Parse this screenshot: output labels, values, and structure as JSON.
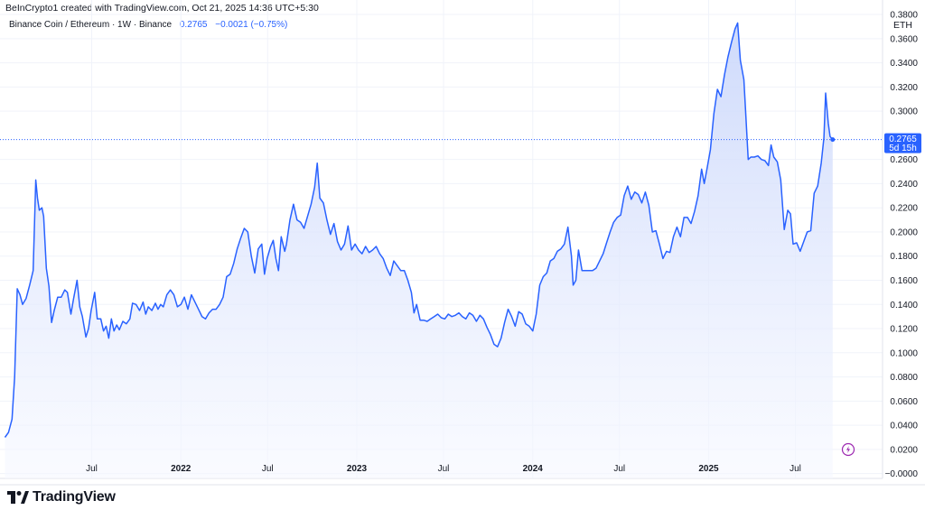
{
  "header": {
    "attribution": "BeInCrypto1 created with TradingView.com, Oct 21, 2025 14:36 UTC+5:30"
  },
  "legend": {
    "symbol": "Binance Coin / Ethereum · 1W · Binance",
    "last": "0.2765",
    "change": "−0.0021 (−0.75%)"
  },
  "currency": "ETH",
  "price_label": {
    "value": "0.2765",
    "countdown": "5d 15h"
  },
  "colors": {
    "line": "#2962ff",
    "area_top": "#c9d6fb",
    "area_bottom": "#f6f8ff",
    "grid": "#f0f3fa",
    "axis_text": "#131722",
    "flash_icon": "#9c27b0"
  },
  "brand": {
    "name": "TradingView"
  },
  "chart_data": {
    "type": "area",
    "title": "Binance Coin / Ethereum · 1W · Binance",
    "xlabel": "",
    "ylabel": "ETH",
    "ylim": [
      -0.004,
      0.392
    ],
    "grid": true,
    "x_ticks": [
      {
        "label": "Jul",
        "x": 2021.493
      },
      {
        "label": "2022",
        "x": 2022.0
      },
      {
        "label": "Jul",
        "x": 2022.493
      },
      {
        "label": "2023",
        "x": 2023.0
      },
      {
        "label": "Jul",
        "x": 2023.493
      },
      {
        "label": "2024",
        "x": 2024.0
      },
      {
        "label": "Jul",
        "x": 2024.493
      },
      {
        "label": "2025",
        "x": 2025.0
      },
      {
        "label": "Jul",
        "x": 2025.493
      }
    ],
    "y_ticks": [
      {
        "label": "−0.0000",
        "v": 0
      },
      {
        "label": "0.0200",
        "v": 0.02
      },
      {
        "label": "0.0400",
        "v": 0.04
      },
      {
        "label": "0.0600",
        "v": 0.06
      },
      {
        "label": "0.0800",
        "v": 0.08
      },
      {
        "label": "0.1000",
        "v": 0.1
      },
      {
        "label": "0.1200",
        "v": 0.12
      },
      {
        "label": "0.1400",
        "v": 0.14
      },
      {
        "label": "0.1600",
        "v": 0.16
      },
      {
        "label": "0.1800",
        "v": 0.18
      },
      {
        "label": "0.2000",
        "v": 0.2
      },
      {
        "label": "0.2200",
        "v": 0.22
      },
      {
        "label": "0.2400",
        "v": 0.24
      },
      {
        "label": "0.2600",
        "v": 0.26
      },
      {
        "label": "0.3000",
        "v": 0.3
      },
      {
        "label": "0.3200",
        "v": 0.32
      },
      {
        "label": "0.3400",
        "v": 0.34
      },
      {
        "label": "0.3600",
        "v": 0.36
      },
      {
        "label": "0.3800",
        "v": 0.38
      }
    ],
    "last_value": 0.2765,
    "series": [
      {
        "points": [
          [
            2021.0,
            0.03
          ],
          [
            2021.02,
            0.034
          ],
          [
            2021.04,
            0.045
          ],
          [
            2021.055,
            0.08
          ],
          [
            2021.07,
            0.153
          ],
          [
            2021.085,
            0.148
          ],
          [
            2021.1,
            0.14
          ],
          [
            2021.12,
            0.145
          ],
          [
            2021.14,
            0.156
          ],
          [
            2021.16,
            0.168
          ],
          [
            2021.175,
            0.243
          ],
          [
            2021.185,
            0.228
          ],
          [
            2021.195,
            0.218
          ],
          [
            2021.21,
            0.22
          ],
          [
            2021.22,
            0.213
          ],
          [
            2021.235,
            0.17
          ],
          [
            2021.25,
            0.155
          ],
          [
            2021.265,
            0.125
          ],
          [
            2021.28,
            0.135
          ],
          [
            2021.3,
            0.146
          ],
          [
            2021.32,
            0.146
          ],
          [
            2021.34,
            0.152
          ],
          [
            2021.355,
            0.15
          ],
          [
            2021.375,
            0.132
          ],
          [
            2021.39,
            0.145
          ],
          [
            2021.41,
            0.16
          ],
          [
            2021.425,
            0.138
          ],
          [
            2021.44,
            0.13
          ],
          [
            2021.46,
            0.113
          ],
          [
            2021.475,
            0.12
          ],
          [
            2021.49,
            0.135
          ],
          [
            2021.51,
            0.15
          ],
          [
            2021.525,
            0.128
          ],
          [
            2021.545,
            0.128
          ],
          [
            2021.56,
            0.118
          ],
          [
            2021.575,
            0.122
          ],
          [
            2021.59,
            0.112
          ],
          [
            2021.605,
            0.128
          ],
          [
            2021.62,
            0.118
          ],
          [
            2021.635,
            0.123
          ],
          [
            2021.65,
            0.119
          ],
          [
            2021.67,
            0.126
          ],
          [
            2021.69,
            0.124
          ],
          [
            2021.71,
            0.128
          ],
          [
            2021.725,
            0.141
          ],
          [
            2021.745,
            0.14
          ],
          [
            2021.765,
            0.135
          ],
          [
            2021.785,
            0.142
          ],
          [
            2021.8,
            0.132
          ],
          [
            2021.815,
            0.138
          ],
          [
            2021.835,
            0.135
          ],
          [
            2021.855,
            0.141
          ],
          [
            2021.87,
            0.136
          ],
          [
            2021.885,
            0.14
          ],
          [
            2021.9,
            0.138
          ],
          [
            2021.92,
            0.148
          ],
          [
            2021.94,
            0.152
          ],
          [
            2021.96,
            0.148
          ],
          [
            2021.98,
            0.138
          ],
          [
            2022.0,
            0.14
          ],
          [
            2022.02,
            0.146
          ],
          [
            2022.04,
            0.136
          ],
          [
            2022.06,
            0.148
          ],
          [
            2022.08,
            0.142
          ],
          [
            2022.1,
            0.136
          ],
          [
            2022.12,
            0.13
          ],
          [
            2022.14,
            0.128
          ],
          [
            2022.16,
            0.133
          ],
          [
            2022.18,
            0.136
          ],
          [
            2022.2,
            0.136
          ],
          [
            2022.22,
            0.14
          ],
          [
            2022.24,
            0.146
          ],
          [
            2022.26,
            0.163
          ],
          [
            2022.28,
            0.165
          ],
          [
            2022.3,
            0.174
          ],
          [
            2022.32,
            0.186
          ],
          [
            2022.34,
            0.195
          ],
          [
            2022.36,
            0.203
          ],
          [
            2022.38,
            0.2
          ],
          [
            2022.4,
            0.18
          ],
          [
            2022.42,
            0.166
          ],
          [
            2022.44,
            0.186
          ],
          [
            2022.46,
            0.19
          ],
          [
            2022.475,
            0.165
          ],
          [
            2022.49,
            0.178
          ],
          [
            2022.51,
            0.188
          ],
          [
            2022.525,
            0.193
          ],
          [
            2022.54,
            0.178
          ],
          [
            2022.555,
            0.168
          ],
          [
            2022.57,
            0.196
          ],
          [
            2022.59,
            0.184
          ],
          [
            2022.6,
            0.19
          ],
          [
            2022.62,
            0.21
          ],
          [
            2022.64,
            0.223
          ],
          [
            2022.66,
            0.21
          ],
          [
            2022.68,
            0.208
          ],
          [
            2022.7,
            0.203
          ],
          [
            2022.72,
            0.213
          ],
          [
            2022.74,
            0.223
          ],
          [
            2022.76,
            0.237
          ],
          [
            2022.775,
            0.257
          ],
          [
            2022.79,
            0.228
          ],
          [
            2022.81,
            0.224
          ],
          [
            2022.83,
            0.21
          ],
          [
            2022.85,
            0.198
          ],
          [
            2022.87,
            0.207
          ],
          [
            2022.89,
            0.192
          ],
          [
            2022.91,
            0.185
          ],
          [
            2022.93,
            0.19
          ],
          [
            2022.95,
            0.205
          ],
          [
            2022.97,
            0.185
          ],
          [
            2022.99,
            0.19
          ],
          [
            2023.01,
            0.185
          ],
          [
            2023.03,
            0.182
          ],
          [
            2023.05,
            0.188
          ],
          [
            2023.07,
            0.183
          ],
          [
            2023.09,
            0.185
          ],
          [
            2023.11,
            0.188
          ],
          [
            2023.13,
            0.182
          ],
          [
            2023.15,
            0.178
          ],
          [
            2023.17,
            0.17
          ],
          [
            2023.19,
            0.164
          ],
          [
            2023.21,
            0.176
          ],
          [
            2023.23,
            0.172
          ],
          [
            2023.25,
            0.168
          ],
          [
            2023.27,
            0.168
          ],
          [
            2023.29,
            0.16
          ],
          [
            2023.31,
            0.15
          ],
          [
            2023.325,
            0.133
          ],
          [
            2023.34,
            0.14
          ],
          [
            2023.36,
            0.127
          ],
          [
            2023.38,
            0.127
          ],
          [
            2023.4,
            0.126
          ],
          [
            2023.42,
            0.128
          ],
          [
            2023.44,
            0.13
          ],
          [
            2023.46,
            0.132
          ],
          [
            2023.48,
            0.129
          ],
          [
            2023.5,
            0.128
          ],
          [
            2023.52,
            0.132
          ],
          [
            2023.54,
            0.13
          ],
          [
            2023.56,
            0.131
          ],
          [
            2023.58,
            0.133
          ],
          [
            2023.6,
            0.13
          ],
          [
            2023.62,
            0.128
          ],
          [
            2023.64,
            0.133
          ],
          [
            2023.66,
            0.131
          ],
          [
            2023.68,
            0.126
          ],
          [
            2023.7,
            0.131
          ],
          [
            2023.72,
            0.128
          ],
          [
            2023.74,
            0.121
          ],
          [
            2023.76,
            0.115
          ],
          [
            2023.78,
            0.107
          ],
          [
            2023.8,
            0.105
          ],
          [
            2023.82,
            0.112
          ],
          [
            2023.84,
            0.125
          ],
          [
            2023.86,
            0.136
          ],
          [
            2023.88,
            0.13
          ],
          [
            2023.9,
            0.122
          ],
          [
            2023.92,
            0.134
          ],
          [
            2023.94,
            0.132
          ],
          [
            2023.96,
            0.124
          ],
          [
            2023.98,
            0.122
          ],
          [
            2024.0,
            0.118
          ],
          [
            2024.02,
            0.132
          ],
          [
            2024.04,
            0.156
          ],
          [
            2024.06,
            0.163
          ],
          [
            2024.08,
            0.166
          ],
          [
            2024.1,
            0.176
          ],
          [
            2024.12,
            0.178
          ],
          [
            2024.14,
            0.184
          ],
          [
            2024.16,
            0.186
          ],
          [
            2024.18,
            0.19
          ],
          [
            2024.2,
            0.204
          ],
          [
            2024.22,
            0.18
          ],
          [
            2024.23,
            0.156
          ],
          [
            2024.245,
            0.16
          ],
          [
            2024.26,
            0.185
          ],
          [
            2024.28,
            0.168
          ],
          [
            2024.3,
            0.168
          ],
          [
            2024.32,
            0.168
          ],
          [
            2024.34,
            0.168
          ],
          [
            2024.36,
            0.17
          ],
          [
            2024.38,
            0.176
          ],
          [
            2024.4,
            0.182
          ],
          [
            2024.42,
            0.191
          ],
          [
            2024.44,
            0.2
          ],
          [
            2024.46,
            0.208
          ],
          [
            2024.48,
            0.212
          ],
          [
            2024.5,
            0.214
          ],
          [
            2024.52,
            0.23
          ],
          [
            2024.54,
            0.238
          ],
          [
            2024.56,
            0.227
          ],
          [
            2024.58,
            0.233
          ],
          [
            2024.6,
            0.231
          ],
          [
            2024.62,
            0.224
          ],
          [
            2024.64,
            0.233
          ],
          [
            2024.66,
            0.222
          ],
          [
            2024.68,
            0.2
          ],
          [
            2024.7,
            0.201
          ],
          [
            2024.72,
            0.19
          ],
          [
            2024.74,
            0.178
          ],
          [
            2024.76,
            0.184
          ],
          [
            2024.78,
            0.183
          ],
          [
            2024.8,
            0.196
          ],
          [
            2024.82,
            0.204
          ],
          [
            2024.84,
            0.196
          ],
          [
            2024.86,
            0.212
          ],
          [
            2024.88,
            0.212
          ],
          [
            2024.9,
            0.207
          ],
          [
            2024.92,
            0.217
          ],
          [
            2024.94,
            0.23
          ],
          [
            2024.96,
            0.252
          ],
          [
            2024.975,
            0.24
          ],
          [
            2024.99,
            0.252
          ],
          [
            2025.01,
            0.268
          ],
          [
            2025.03,
            0.298
          ],
          [
            2025.05,
            0.318
          ],
          [
            2025.07,
            0.312
          ],
          [
            2025.09,
            0.33
          ],
          [
            2025.11,
            0.345
          ],
          [
            2025.13,
            0.357
          ],
          [
            2025.15,
            0.368
          ],
          [
            2025.165,
            0.373
          ],
          [
            2025.18,
            0.342
          ],
          [
            2025.2,
            0.326
          ],
          [
            2025.21,
            0.3
          ],
          [
            2025.225,
            0.26
          ],
          [
            2025.24,
            0.262
          ],
          [
            2025.26,
            0.262
          ],
          [
            2025.28,
            0.263
          ],
          [
            2025.3,
            0.26
          ],
          [
            2025.32,
            0.259
          ],
          [
            2025.34,
            0.255
          ],
          [
            2025.355,
            0.272
          ],
          [
            2025.37,
            0.262
          ],
          [
            2025.39,
            0.258
          ],
          [
            2025.41,
            0.243
          ],
          [
            2025.43,
            0.202
          ],
          [
            2025.45,
            0.218
          ],
          [
            2025.465,
            0.215
          ],
          [
            2025.48,
            0.19
          ],
          [
            2025.5,
            0.191
          ],
          [
            2025.52,
            0.184
          ],
          [
            2025.54,
            0.192
          ],
          [
            2025.56,
            0.2
          ],
          [
            2025.58,
            0.201
          ],
          [
            2025.6,
            0.232
          ],
          [
            2025.62,
            0.238
          ],
          [
            2025.64,
            0.257
          ],
          [
            2025.655,
            0.278
          ],
          [
            2025.665,
            0.315
          ],
          [
            2025.68,
            0.29
          ],
          [
            2025.69,
            0.279
          ],
          [
            2025.705,
            0.2765
          ]
        ]
      }
    ]
  }
}
